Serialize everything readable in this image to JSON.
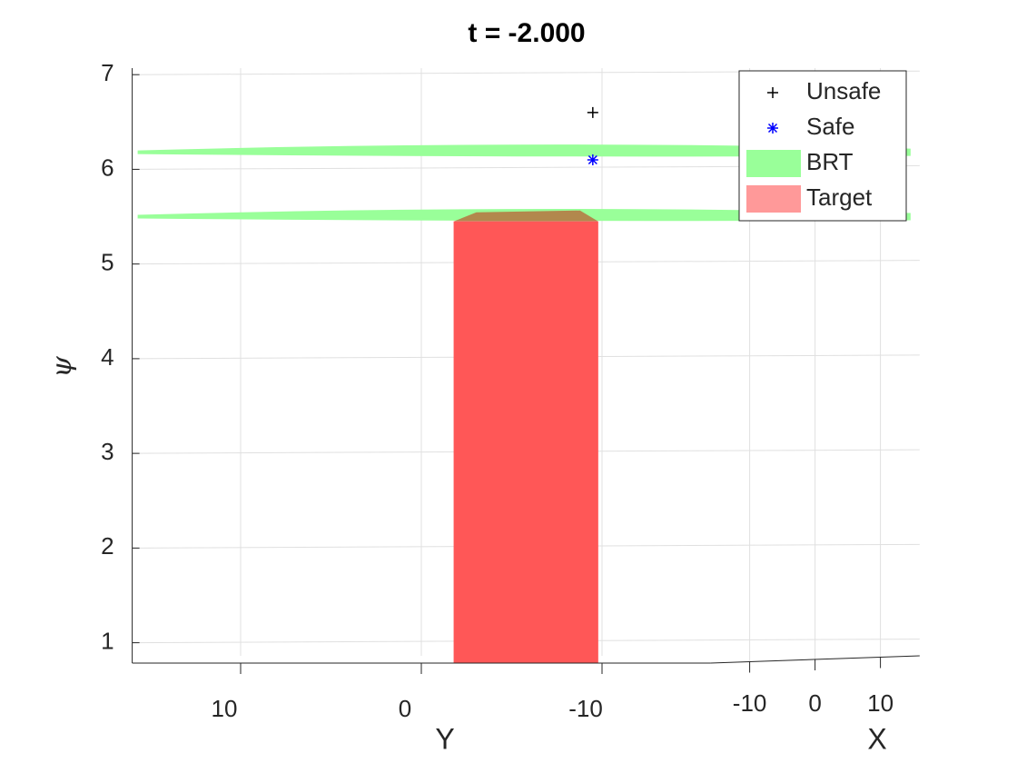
{
  "chart_data": {
    "type": "surface3d",
    "title": "t = -2.000",
    "xlabel": "X",
    "ylabel": "Y",
    "zlabel": "ψ",
    "xlim": [
      -16,
      16
    ],
    "xticks": [
      -10,
      0,
      10
    ],
    "ylim": [
      -16,
      16
    ],
    "yticks": [
      10,
      0,
      -10
    ],
    "zlim": [
      0.785,
      7.069
    ],
    "zticks": [
      1,
      2,
      3,
      4,
      5,
      6,
      7
    ],
    "grid": true,
    "legend": "upper right",
    "series": [
      {
        "name": "Unsafe",
        "kind": "marker",
        "marker": "+",
        "color": "#000000",
        "x": [
          0
        ],
        "y": [
          -3.7
        ],
        "z": [
          6.6
        ]
      },
      {
        "name": "Safe",
        "kind": "marker",
        "marker": "*",
        "color": "#0000ff",
        "x": [
          0
        ],
        "y": [
          -3.7
        ],
        "z": [
          6.1
        ]
      },
      {
        "name": "BRT",
        "kind": "slab",
        "color": "#99ff99",
        "z": [
          5.5,
          6.18
        ]
      },
      {
        "name": "Target",
        "kind": "cylinder",
        "color": "#ff9999",
        "x": [
          0
        ],
        "y": [
          0
        ],
        "radius": [
          4
        ],
        "z": [
          0.785,
          5.45
        ]
      }
    ]
  }
}
